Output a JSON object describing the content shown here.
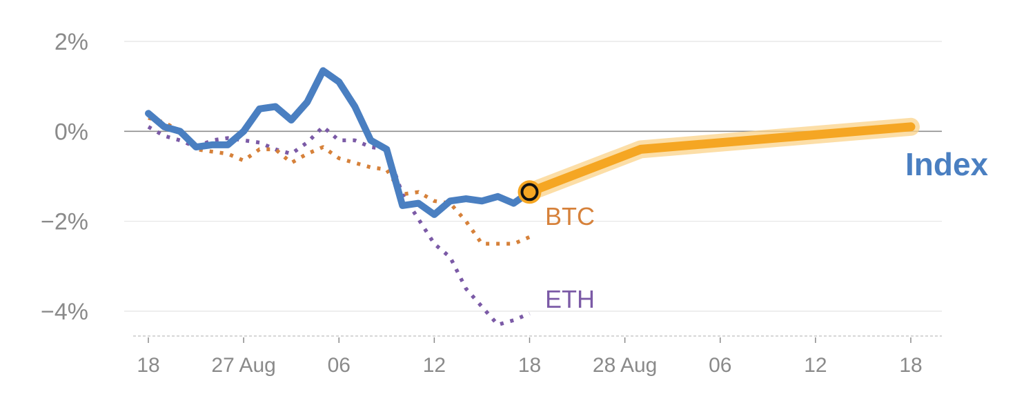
{
  "chart_data": {
    "type": "line",
    "y_axis": {
      "ticks": [
        2,
        0,
        -2,
        -4
      ],
      "tick_labels": [
        "2%",
        "0%",
        "−2%",
        "−4%"
      ],
      "ylim": [
        -4.6,
        2.2
      ]
    },
    "x_axis": {
      "ticks": [
        0,
        6,
        12,
        18,
        24,
        30,
        36,
        42,
        48
      ],
      "tick_labels": [
        "18",
        "27 Aug",
        "06",
        "12",
        "18",
        "28 Aug",
        "06",
        "12",
        "18"
      ],
      "xlim": [
        0,
        48
      ]
    },
    "grid": true,
    "zero_line": true,
    "series": [
      {
        "name": "BTC",
        "color": "#d6813a",
        "style": "dotted",
        "x": [
          0,
          1,
          2,
          3,
          4,
          5,
          6,
          7,
          8,
          9,
          10,
          11,
          12,
          13,
          14,
          15,
          16,
          17,
          18,
          19,
          20,
          21,
          22,
          23,
          24
        ],
        "y": [
          0.3,
          0.2,
          0.0,
          -0.4,
          -0.45,
          -0.5,
          -0.65,
          -0.4,
          -0.4,
          -0.7,
          -0.5,
          -0.35,
          -0.6,
          -0.7,
          -0.8,
          -0.85,
          -1.4,
          -1.35,
          -1.55,
          -1.6,
          -2.0,
          -2.5,
          -2.5,
          -2.5,
          -2.35
        ]
      },
      {
        "name": "ETH",
        "color": "#7b5aa6",
        "style": "dotted",
        "x": [
          0,
          1,
          2,
          3,
          4,
          5,
          6,
          7,
          8,
          9,
          10,
          11,
          12,
          13,
          14,
          15,
          16,
          17,
          18,
          19,
          20,
          21,
          22,
          23,
          24
        ],
        "y": [
          0.1,
          -0.1,
          -0.2,
          -0.35,
          -0.2,
          -0.15,
          -0.2,
          -0.25,
          -0.4,
          -0.5,
          -0.25,
          0.1,
          -0.2,
          -0.2,
          -0.35,
          -0.4,
          -1.4,
          -1.95,
          -2.5,
          -2.8,
          -3.5,
          -3.9,
          -4.3,
          -4.2,
          -4.05
        ]
      },
      {
        "name": "Index",
        "color": "#4a7fc1",
        "style": "solid",
        "x": [
          0,
          1,
          2,
          3,
          4,
          5,
          6,
          7,
          8,
          9,
          10,
          11,
          12,
          13,
          14,
          15,
          16,
          17,
          18,
          19,
          20,
          21,
          22,
          23,
          24
        ],
        "y": [
          0.4,
          0.1,
          0.0,
          -0.35,
          -0.3,
          -0.3,
          0.0,
          0.5,
          0.55,
          0.25,
          0.65,
          1.35,
          1.1,
          0.55,
          -0.2,
          -0.4,
          -1.65,
          -1.6,
          -1.85,
          -1.55,
          -1.5,
          -1.55,
          -1.45,
          -1.6,
          -1.35
        ]
      }
    ],
    "forecast": {
      "color": "#f5a623",
      "x": [
        24,
        31,
        48
      ],
      "y": [
        -1.35,
        -0.4,
        0.1
      ]
    },
    "marker": {
      "x": 24,
      "y": -1.35
    },
    "labels": {
      "btc": "BTC",
      "eth": "ETH",
      "index": "Index"
    }
  }
}
